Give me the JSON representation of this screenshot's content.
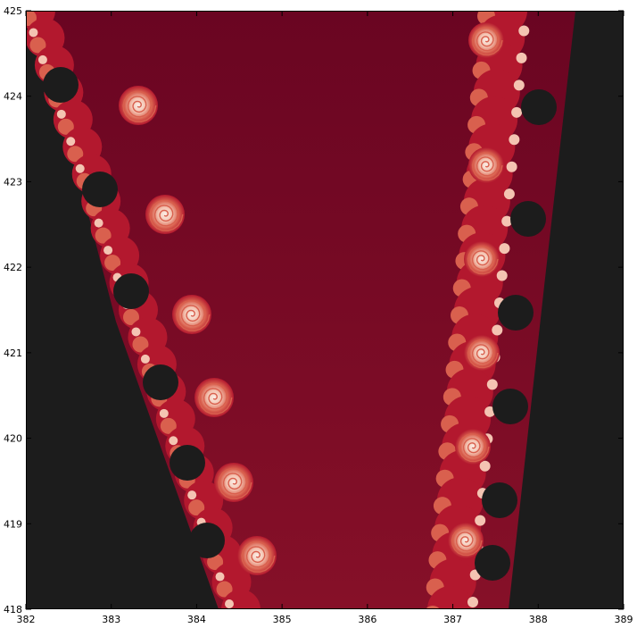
{
  "chart_data": {
    "type": "heatmap",
    "title": "",
    "xlabel": "",
    "ylabel": "",
    "xlim": [
      382,
      389
    ],
    "ylim": [
      418,
      425
    ],
    "xticks": [
      "382",
      "383",
      "384",
      "385",
      "386",
      "387",
      "388",
      "389"
    ],
    "yticks": [
      "418",
      "419",
      "420",
      "421",
      "422",
      "423",
      "424",
      "425"
    ],
    "grid": false,
    "legend": "none",
    "colormap": "RdGy",
    "colors": {
      "interior": "#1c1c1c",
      "fill_dark": "#6a0522",
      "fill_light": "#861028",
      "spiral_red": "#b3182e",
      "spiral_mid": "#d9604e",
      "spiral_light": "#f4c4b2",
      "spiral_white": "#fbefe8"
    },
    "description_of_field": "escape-time fractal (Mandelbrot-like spiral boundary)"
  }
}
